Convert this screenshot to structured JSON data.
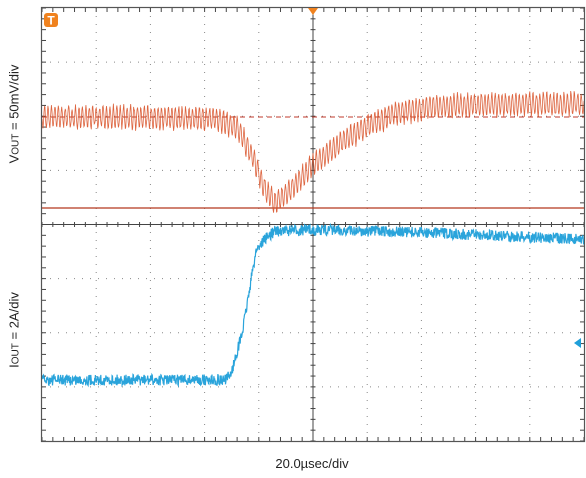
{
  "chart_data": {
    "type": "line",
    "title": "",
    "xlabel": "20.0µsec/div",
    "divisions": {
      "x": 10,
      "y": 8
    },
    "xlim": [
      -100,
      100
    ],
    "x_unit": "µs",
    "trigger_marker": "T",
    "series": [
      {
        "name": "VOUT",
        "ylabel": "VOUT = 50mV/div",
        "ylabel_main": "V",
        "ylabel_sub": "OUT",
        "ylabel_rest": " = 50mV/div",
        "color": "#d9542b",
        "units_per_div": 50,
        "unit": "mV",
        "ripple_pp_mV": 22,
        "points": [
          [
            -100,
            0
          ],
          [
            -70,
            0
          ],
          [
            -35,
            -2
          ],
          [
            -28,
            -10
          ],
          [
            -22,
            -38
          ],
          [
            -18,
            -66
          ],
          [
            -14,
            -80
          ],
          [
            -8,
            -66
          ],
          [
            0,
            -44
          ],
          [
            10,
            -24
          ],
          [
            20,
            -8
          ],
          [
            30,
            3
          ],
          [
            45,
            10
          ],
          [
            70,
            12
          ],
          [
            100,
            12
          ]
        ]
      },
      {
        "name": "IOUT",
        "ylabel": "IOUT = 2A/div",
        "ylabel_main": "I",
        "ylabel_sub": "OUT",
        "ylabel_rest": " = 2A/div",
        "color": "#1f9fd9",
        "units_per_div": 2,
        "unit": "A",
        "points": [
          [
            -100,
            0
          ],
          [
            -32,
            0
          ],
          [
            -30,
            0.3
          ],
          [
            -26,
            1.8
          ],
          [
            -23,
            3.6
          ],
          [
            -21,
            4.8
          ],
          [
            -18,
            5.2
          ],
          [
            -14,
            5.5
          ],
          [
            0,
            5.55
          ],
          [
            40,
            5.45
          ],
          [
            100,
            5.2
          ]
        ]
      }
    ]
  }
}
